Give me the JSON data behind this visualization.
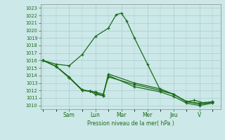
{
  "background_color": "#cce8e8",
  "grid_color": "#aacccc",
  "line_color": "#1a6b1a",
  "ylabel": "Pression niveau de la mer( hPa )",
  "ylim": [
    1009.5,
    1023.5
  ],
  "yticks": [
    1010,
    1011,
    1012,
    1013,
    1014,
    1015,
    1016,
    1017,
    1018,
    1019,
    1020,
    1021,
    1022,
    1023
  ],
  "xtick_positions": [
    1.0,
    2.0,
    3.0,
    4.0,
    5.0,
    6.0
  ],
  "xtick_labels": [
    "Sam",
    "Lun",
    "Mar",
    "Mer",
    "Jeu",
    "V"
  ],
  "series1_x": [
    0.0,
    0.5,
    1.0,
    1.5,
    2.0,
    2.5,
    2.8,
    3.0,
    3.2,
    3.5,
    4.0,
    4.5,
    5.0,
    5.5,
    5.8,
    6.2,
    6.5
  ],
  "series1_y": [
    1016.0,
    1015.5,
    1015.3,
    1016.8,
    1019.2,
    1020.3,
    1022.1,
    1022.3,
    1021.3,
    1019.0,
    1015.5,
    1012.0,
    1011.5,
    1010.5,
    1010.7,
    1010.3,
    1010.5
  ],
  "series2_x": [
    0.0,
    0.5,
    1.0,
    1.5,
    1.8,
    2.0,
    2.3,
    2.5,
    3.5,
    4.5,
    5.0,
    5.5,
    6.0,
    6.5
  ],
  "series2_y": [
    1016.0,
    1015.2,
    1013.7,
    1012.0,
    1011.9,
    1011.5,
    1011.3,
    1014.2,
    1013.0,
    1012.2,
    1011.5,
    1010.5,
    1010.3,
    1010.5
  ],
  "series3_x": [
    0.0,
    0.5,
    1.0,
    1.5,
    1.8,
    2.0,
    2.3,
    2.5,
    3.5,
    4.5,
    5.0,
    5.5,
    6.0,
    6.5
  ],
  "series3_y": [
    1016.0,
    1015.2,
    1013.7,
    1012.1,
    1011.9,
    1011.8,
    1011.5,
    1013.8,
    1012.8,
    1012.0,
    1011.5,
    1010.5,
    1010.2,
    1010.4
  ],
  "series4_x": [
    0.0,
    0.5,
    1.0,
    1.5,
    1.8,
    2.0,
    2.3,
    2.5,
    3.5,
    4.5,
    5.0,
    5.5,
    6.0,
    6.5
  ],
  "series4_y": [
    1016.0,
    1015.2,
    1013.8,
    1012.0,
    1011.9,
    1011.7,
    1011.3,
    1014.0,
    1012.5,
    1011.8,
    1011.2,
    1010.3,
    1010.0,
    1010.3
  ]
}
